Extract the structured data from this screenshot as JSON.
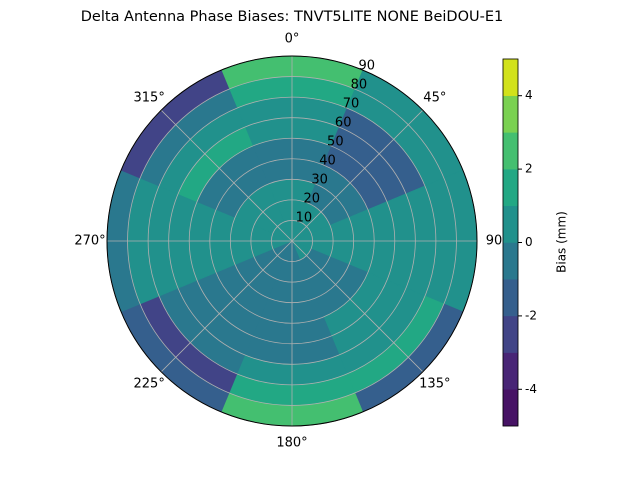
{
  "chart_data": {
    "type": "polar-contour",
    "title": "Delta Antenna Phase Biases: TNVT5LITE       NONE BeiDOU-E1",
    "theta": [
      0,
      45,
      90,
      135,
      180,
      225,
      270,
      315
    ],
    "r": [
      5,
      15,
      25,
      35,
      45,
      55,
      65,
      75,
      85
    ],
    "z": [
      [
        0.5,
        0.5,
        0.5,
        -0.5,
        -0.5,
        0.5,
        0.5,
        1.5,
        2.5
      ],
      [
        0.5,
        0.5,
        -0.5,
        -0.5,
        -1.5,
        -1.5,
        -1.5,
        0.5,
        0.5
      ],
      [
        0.5,
        0.5,
        0.5,
        0.5,
        0.5,
        0.5,
        0.5,
        0.5,
        0.5
      ],
      [
        0.5,
        -0.5,
        -0.5,
        -0.5,
        0.5,
        0.5,
        0.5,
        1.5,
        -1.5
      ],
      [
        -0.5,
        -0.5,
        -0.5,
        -0.5,
        -0.5,
        -0.5,
        0.5,
        1.5,
        2.5
      ],
      [
        -0.5,
        -0.5,
        -0.5,
        -0.5,
        -0.5,
        -0.5,
        -0.5,
        -2.5,
        -1.5
      ],
      [
        0.5,
        0.5,
        0.5,
        0.5,
        0.5,
        0.5,
        0.5,
        0.5,
        -0.5
      ],
      [
        0.5,
        0.5,
        0.5,
        -0.5,
        -0.5,
        1.5,
        0.5,
        -0.5,
        -2.5
      ]
    ],
    "rlim": [
      0,
      90
    ],
    "rticks": [
      10,
      20,
      30,
      40,
      50,
      60,
      70,
      80,
      90
    ],
    "thetaticks": [
      {
        "value": 0,
        "label": "0°"
      },
      {
        "value": 45,
        "label": "45°"
      },
      {
        "value": 90,
        "label": "90"
      },
      {
        "value": 135,
        "label": "135°"
      },
      {
        "value": 180,
        "label": "180°"
      },
      {
        "value": 225,
        "label": "225°"
      },
      {
        "value": 270,
        "label": "270°"
      },
      {
        "value": 315,
        "label": "315°"
      }
    ],
    "clim": [
      -5,
      5
    ],
    "cticks": [
      -4,
      -2,
      0,
      2,
      4
    ],
    "colorbar_label": "Bias (mm)",
    "colors": [
      "#471365",
      "#482576",
      "#414487",
      "#355f8d",
      "#2a788e",
      "#21918c",
      "#22a884",
      "#44bf70",
      "#7ad151",
      "#d2e21b"
    ],
    "grid": true
  }
}
